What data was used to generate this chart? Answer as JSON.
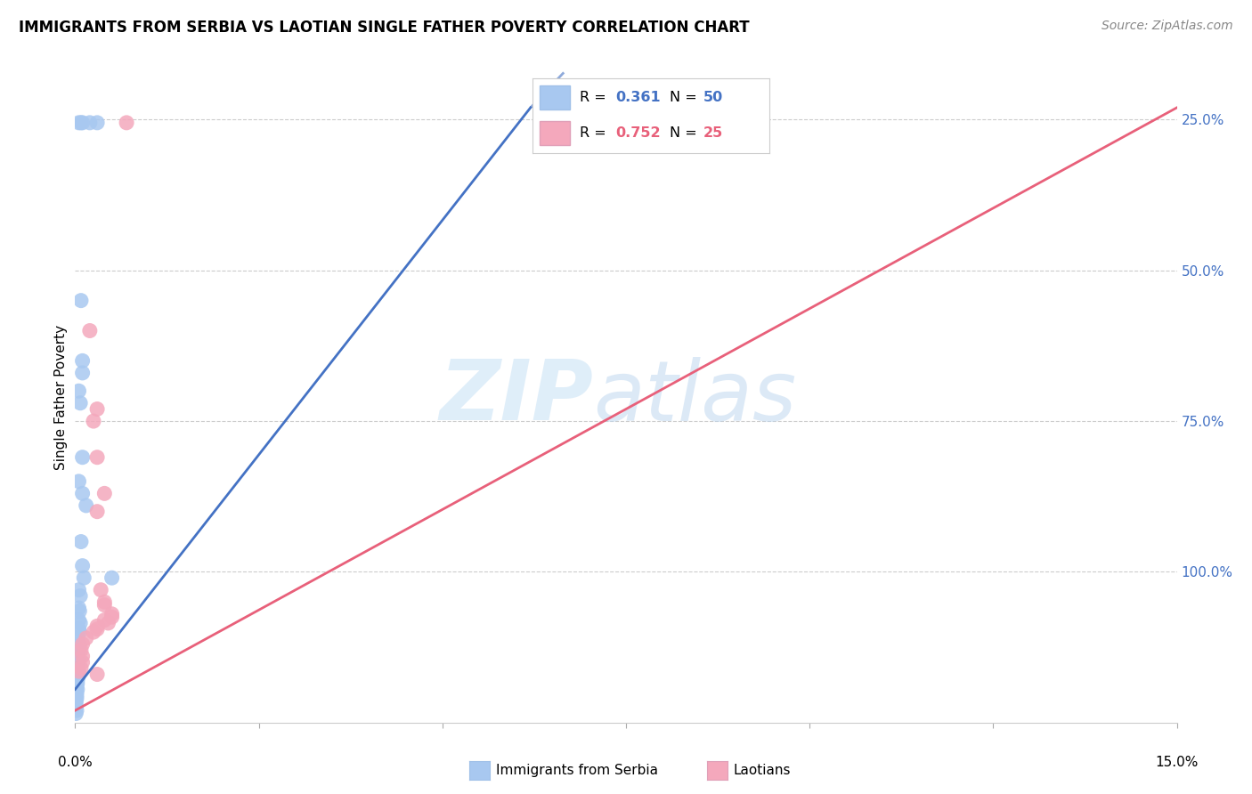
{
  "title": "IMMIGRANTS FROM SERBIA VS LAOTIAN SINGLE FATHER POVERTY CORRELATION CHART",
  "source": "Source: ZipAtlas.com",
  "ylabel": "Single Father Poverty",
  "serbia_color": "#a8c8f0",
  "laotian_color": "#f4a8bc",
  "serbia_line_color": "#4472c4",
  "laotian_line_color": "#e8607a",
  "serbia_R": 0.361,
  "serbia_N": 50,
  "laotian_R": 0.752,
  "laotian_N": 25,
  "xlim": [
    0,
    0.15
  ],
  "ylim": [
    0,
    1.08
  ],
  "serbia_points": [
    [
      0.0005,
      0.995
    ],
    [
      0.0008,
      0.995
    ],
    [
      0.001,
      0.995
    ],
    [
      0.002,
      0.995
    ],
    [
      0.003,
      0.995
    ],
    [
      0.0008,
      0.7
    ],
    [
      0.001,
      0.6
    ],
    [
      0.001,
      0.58
    ],
    [
      0.0005,
      0.55
    ],
    [
      0.0007,
      0.53
    ],
    [
      0.001,
      0.44
    ],
    [
      0.0005,
      0.4
    ],
    [
      0.001,
      0.38
    ],
    [
      0.0015,
      0.36
    ],
    [
      0.0008,
      0.3
    ],
    [
      0.001,
      0.26
    ],
    [
      0.0012,
      0.24
    ],
    [
      0.0005,
      0.22
    ],
    [
      0.0007,
      0.21
    ],
    [
      0.0005,
      0.19
    ],
    [
      0.0006,
      0.185
    ],
    [
      0.0005,
      0.17
    ],
    [
      0.0007,
      0.165
    ],
    [
      0.0005,
      0.155
    ],
    [
      0.0006,
      0.15
    ],
    [
      0.0004,
      0.14
    ],
    [
      0.0006,
      0.13
    ],
    [
      0.0003,
      0.125
    ],
    [
      0.0005,
      0.12
    ],
    [
      0.0004,
      0.11
    ],
    [
      0.0005,
      0.105
    ],
    [
      0.0003,
      0.1
    ],
    [
      0.0004,
      0.095
    ],
    [
      0.0003,
      0.09
    ],
    [
      0.0004,
      0.085
    ],
    [
      0.0003,
      0.08
    ],
    [
      0.0004,
      0.075
    ],
    [
      0.0003,
      0.07
    ],
    [
      0.0003,
      0.065
    ],
    [
      0.0002,
      0.06
    ],
    [
      0.0003,
      0.055
    ],
    [
      0.0002,
      0.05
    ],
    [
      0.0002,
      0.045
    ],
    [
      0.0002,
      0.04
    ],
    [
      0.0001,
      0.035
    ],
    [
      0.0001,
      0.03
    ],
    [
      0.0001,
      0.025
    ],
    [
      0.0002,
      0.02
    ],
    [
      0.0001,
      0.015
    ],
    [
      0.005,
      0.24
    ]
  ],
  "laotian_points": [
    [
      0.007,
      0.995
    ],
    [
      0.002,
      0.65
    ],
    [
      0.003,
      0.52
    ],
    [
      0.0025,
      0.5
    ],
    [
      0.003,
      0.44
    ],
    [
      0.004,
      0.38
    ],
    [
      0.003,
      0.35
    ],
    [
      0.0035,
      0.22
    ],
    [
      0.004,
      0.2
    ],
    [
      0.004,
      0.195
    ],
    [
      0.005,
      0.18
    ],
    [
      0.005,
      0.175
    ],
    [
      0.004,
      0.17
    ],
    [
      0.0045,
      0.165
    ],
    [
      0.003,
      0.16
    ],
    [
      0.003,
      0.155
    ],
    [
      0.0025,
      0.15
    ],
    [
      0.0015,
      0.14
    ],
    [
      0.001,
      0.13
    ],
    [
      0.0008,
      0.12
    ],
    [
      0.001,
      0.11
    ],
    [
      0.001,
      0.1
    ],
    [
      0.0008,
      0.09
    ],
    [
      0.0005,
      0.085
    ],
    [
      0.003,
      0.08
    ]
  ],
  "serbia_line": [
    [
      0.0,
      0.055
    ],
    [
      0.062,
      1.02
    ]
  ],
  "serbia_line_dash": [
    [
      0.062,
      1.02
    ],
    [
      0.09,
      1.38
    ]
  ],
  "laotian_line": [
    [
      0.0,
      0.02
    ],
    [
      0.15,
      1.02
    ]
  ]
}
